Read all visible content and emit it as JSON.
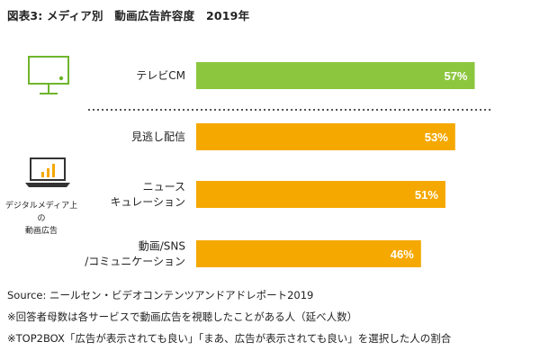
{
  "title": "図表3: メディア別　動画広告許容度　2019年",
  "groups": {
    "digital_label_line1": "デジタルメディア上の",
    "digital_label_line2": "動画広告"
  },
  "icons": {
    "tv": "tv-icon",
    "laptop": "laptop-chart-icon"
  },
  "footer": {
    "source": "Source: ニールセン・ビデオコンテンツアンドアドレポート2019",
    "note1": "※回答者母数は各サービスで動画広告を視聴したことがある人（延べ人数）",
    "note2": "※TOP2BOX「広告が表示されても良い」「まあ、広告が表示されても良い」を選択した人の割合"
  },
  "colors": {
    "green": "#8cc63f",
    "orange": "#f5a800"
  },
  "chart_data": {
    "type": "bar",
    "orientation": "horizontal",
    "categories": [
      "テレビCM",
      "見逃し配信",
      "ニュース キュレーション",
      "動画/SNS /コミュニケーション"
    ],
    "category_lines": [
      [
        "テレビCM"
      ],
      [
        "見逃し配信"
      ],
      [
        "ニュース",
        "キュレーション"
      ],
      [
        "動画/SNS",
        "/コミュニケーション"
      ]
    ],
    "values": [
      57,
      53,
      51,
      46
    ],
    "value_labels": [
      "57%",
      "53%",
      "51%",
      "46%"
    ],
    "bar_colors": [
      "#8cc63f",
      "#f5a800",
      "#f5a800",
      "#f5a800"
    ],
    "xlim": [
      0,
      100
    ],
    "grid": false,
    "legend": "none",
    "title": "図表3: メディア別　動画広告許容度　2019年"
  }
}
